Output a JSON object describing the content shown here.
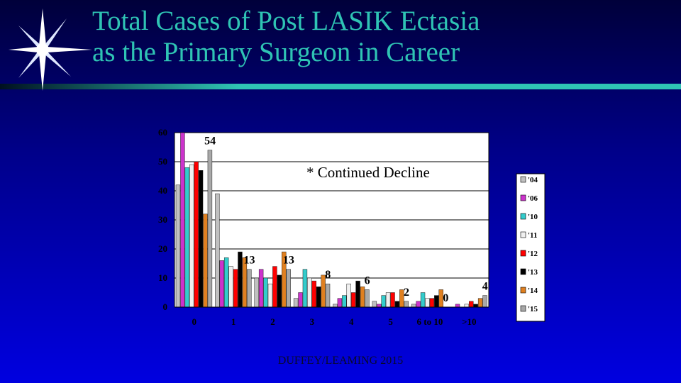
{
  "slide": {
    "title_line1": "Total Cases of Post LASIK Ectasia",
    "title_line2": "as the Primary Surgeon in Career",
    "footer": "DUFFEY/LEAMING 2015",
    "annotation": "* Continued Decline",
    "accent_color": "#2fc4b4",
    "logo_icon": "starburst-icon"
  },
  "chart_data": {
    "type": "bar",
    "categories": [
      "0",
      "1",
      "2",
      "3",
      "4",
      "5",
      "6 to 10",
      ">10"
    ],
    "ylim": [
      0,
      60
    ],
    "yticks": [
      0,
      10,
      20,
      30,
      40,
      50,
      60
    ],
    "grid": true,
    "legend_position": "right",
    "series": [
      {
        "name": "'04",
        "color": "#c0c0c0",
        "values": [
          42,
          39,
          10,
          3,
          1,
          2,
          1,
          0
        ]
      },
      {
        "name": "'06",
        "color": "#cc33cc",
        "values": [
          60,
          16,
          13,
          5,
          3,
          1,
          2,
          1
        ]
      },
      {
        "name": "'10",
        "color": "#33cccc",
        "values": [
          48,
          17,
          10,
          13,
          4,
          4,
          5,
          0
        ]
      },
      {
        "name": "'11",
        "color": "#f0f0f0",
        "values": [
          49,
          14,
          8,
          10,
          8,
          5,
          3,
          1
        ]
      },
      {
        "name": "'12",
        "color": "#ff0000",
        "values": [
          50,
          13,
          14,
          9,
          5,
          5,
          3,
          2
        ]
      },
      {
        "name": "'13",
        "color": "#000000",
        "values": [
          47,
          19,
          11,
          7,
          9,
          2,
          4,
          1
        ]
      },
      {
        "name": "'14",
        "color": "#e08020",
        "values": [
          32,
          17,
          19,
          11,
          7,
          6,
          6,
          3
        ]
      },
      {
        "name": "'15",
        "color": "#a8a8a8",
        "values": [
          54,
          13,
          13,
          8,
          6,
          2,
          0,
          4
        ]
      }
    ],
    "data_labels": [
      "54",
      "13",
      "13",
      "8",
      "6",
      "2",
      "0",
      "4"
    ]
  }
}
